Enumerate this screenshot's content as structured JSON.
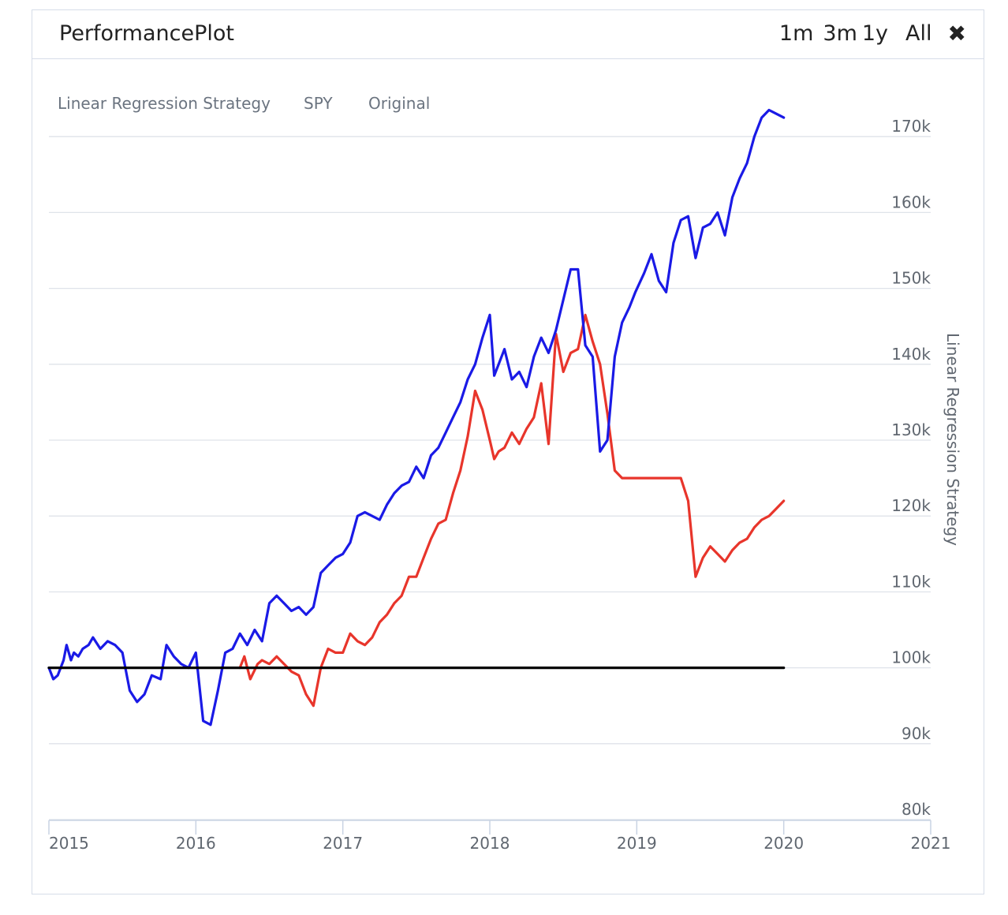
{
  "header": {
    "title": "PerformancePlot",
    "ranges": [
      "1m",
      "3m",
      "1y",
      "All"
    ]
  },
  "colors": {
    "strategy": "#1a1ae6",
    "spy": "#e8352b",
    "original": "#000000",
    "grid": "#dfe3ea"
  },
  "chart_data": {
    "type": "line",
    "title": "",
    "xlabel": "",
    "ylabel": "Linear Regression Strategy",
    "xlim": [
      2015,
      2021
    ],
    "ylim": [
      80000,
      170000
    ],
    "x_ticks": [
      "2015",
      "2016",
      "2017",
      "2018",
      "2019",
      "2020",
      "2021"
    ],
    "y_ticks": [
      "80k",
      "90k",
      "100k",
      "110k",
      "120k",
      "130k",
      "140k",
      "150k",
      "160k",
      "170k"
    ],
    "legend": [
      "Linear Regression Strategy",
      "SPY",
      "Original"
    ],
    "legend_position": "top-left",
    "grid": true,
    "series": [
      {
        "name": "Linear Regression Strategy",
        "x": [
          2015.0,
          2015.03,
          2015.06,
          2015.1,
          2015.12,
          2015.15,
          2015.17,
          2015.2,
          2015.23,
          2015.27,
          2015.3,
          2015.35,
          2015.4,
          2015.45,
          2015.5,
          2015.55,
          2015.6,
          2015.65,
          2015.7,
          2015.76,
          2015.8,
          2015.85,
          2015.9,
          2015.95,
          2016.0,
          2016.05,
          2016.1,
          2016.15,
          2016.2,
          2016.25,
          2016.3,
          2016.35,
          2016.4,
          2016.45,
          2016.5,
          2016.55,
          2016.6,
          2016.65,
          2016.7,
          2016.75,
          2016.8,
          2016.85,
          2016.9,
          2016.95,
          2017.0,
          2017.05,
          2017.1,
          2017.15,
          2017.2,
          2017.25,
          2017.3,
          2017.35,
          2017.4,
          2017.45,
          2017.5,
          2017.55,
          2017.6,
          2017.65,
          2017.7,
          2017.75,
          2017.8,
          2017.85,
          2017.9,
          2017.95,
          2018.0,
          2018.03,
          2018.06,
          2018.1,
          2018.15,
          2018.2,
          2018.25,
          2018.3,
          2018.35,
          2018.4,
          2018.45,
          2018.5,
          2018.55,
          2018.6,
          2018.65,
          2018.7,
          2018.75,
          2018.8,
          2018.85,
          2018.9,
          2018.95,
          2018.99,
          2019.05,
          2019.1,
          2019.15,
          2019.2,
          2019.25,
          2019.3,
          2019.35,
          2019.4,
          2019.45,
          2019.5,
          2019.55,
          2019.6,
          2019.65,
          2019.7,
          2019.75,
          2019.8,
          2019.85,
          2019.9,
          2019.95,
          2020.0
        ],
        "values": [
          100000,
          98500,
          99000,
          101000,
          103000,
          101000,
          102000,
          101500,
          102500,
          103000,
          104000,
          102500,
          103500,
          103000,
          102000,
          97000,
          95500,
          96500,
          99000,
          98500,
          103000,
          101500,
          100500,
          100000,
          102000,
          93000,
          92500,
          97000,
          102000,
          102500,
          104500,
          103000,
          105000,
          103500,
          108500,
          109500,
          108500,
          107500,
          108000,
          107000,
          108000,
          112500,
          113500,
          114500,
          115000,
          116500,
          120000,
          120500,
          120000,
          119500,
          121500,
          123000,
          124000,
          124500,
          126500,
          125000,
          128000,
          129000,
          131000,
          133000,
          135000,
          138000,
          140000,
          143500,
          146500,
          138500,
          140000,
          142000,
          138000,
          139000,
          137000,
          141000,
          143500,
          141500,
          144500,
          148500,
          152500,
          152500,
          142500,
          141000,
          128500,
          130000,
          141000,
          145500,
          147500,
          149500,
          152000,
          154500,
          151000,
          149500,
          156000,
          159000,
          159500,
          154000,
          158000,
          158500,
          160000,
          157000,
          162000,
          164500,
          166500,
          170000,
          172500,
          173500,
          173000,
          172500
        ],
        "color": "#1a1ae6"
      },
      {
        "name": "SPY",
        "x": [
          2016.3,
          2016.33,
          2016.37,
          2016.42,
          2016.45,
          2016.5,
          2016.55,
          2016.6,
          2016.65,
          2016.7,
          2016.75,
          2016.8,
          2016.85,
          2016.9,
          2016.95,
          2017.0,
          2017.05,
          2017.1,
          2017.15,
          2017.2,
          2017.25,
          2017.3,
          2017.35,
          2017.4,
          2017.45,
          2017.5,
          2017.55,
          2017.6,
          2017.65,
          2017.7,
          2017.75,
          2017.8,
          2017.85,
          2017.9,
          2017.95,
          2018.0,
          2018.03,
          2018.06,
          2018.1,
          2018.15,
          2018.2,
          2018.25,
          2018.3,
          2018.35,
          2018.4,
          2018.45,
          2018.5,
          2018.55,
          2018.6,
          2018.65,
          2018.7,
          2018.75,
          2018.8,
          2018.85,
          2018.9,
          2018.95,
          2019.0,
          2019.1,
          2019.2,
          2019.3,
          2019.35,
          2019.4,
          2019.45,
          2019.5,
          2019.55,
          2019.6,
          2019.65,
          2019.7,
          2019.75,
          2019.8,
          2019.85,
          2019.9,
          2019.95,
          2020.0
        ],
        "values": [
          100000,
          101500,
          98500,
          100500,
          101000,
          100500,
          101500,
          100500,
          99500,
          99000,
          96500,
          95000,
          100000,
          102500,
          102000,
          102000,
          104500,
          103500,
          103000,
          104000,
          106000,
          107000,
          108500,
          109500,
          112000,
          112000,
          114500,
          117000,
          119000,
          119500,
          123000,
          126000,
          130500,
          136500,
          134000,
          130000,
          127500,
          128500,
          129000,
          131000,
          129500,
          131500,
          133000,
          137500,
          129500,
          144000,
          139000,
          141500,
          142000,
          146500,
          143000,
          140000,
          133500,
          126000,
          125000,
          125000,
          125000,
          125000,
          125000,
          125000,
          122000,
          112000,
          114500,
          116000,
          115000,
          114000,
          115500,
          116500,
          117000,
          118500,
          119500,
          120000,
          121000,
          122000
        ],
        "color": "#e8352b"
      },
      {
        "name": "Original",
        "x": [
          2015.0,
          2020.0
        ],
        "values": [
          100000,
          100000
        ],
        "color": "#000000"
      }
    ]
  }
}
